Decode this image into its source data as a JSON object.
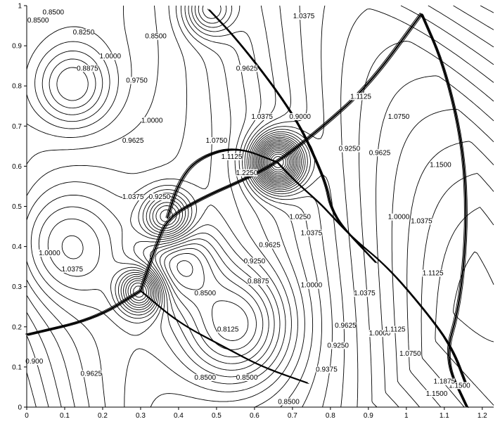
{
  "chart_data": {
    "type": "contour",
    "title": "",
    "xlabel": "",
    "ylabel": "",
    "xlim": [
      0,
      1.23
    ],
    "ylim": [
      0,
      1.0
    ],
    "x_ticks": [
      "0",
      "0.1",
      "0.2",
      "0.3",
      "0.4",
      "0.5",
      "0.6",
      "0.7",
      "0.8",
      "0.9",
      "1",
      "1.1",
      "1.2"
    ],
    "y_ticks": [
      "0",
      "0.1",
      "0.2",
      "0.3",
      "0.4",
      "0.5",
      "0.6",
      "0.7",
      "0.8",
      "0.9",
      "1"
    ],
    "grid": false,
    "line_color": "#000000",
    "shock_fronts": [
      {
        "points": [
          [
            0.3,
            0.29
          ],
          [
            0.34,
            0.4
          ],
          [
            0.37,
            0.47
          ],
          [
            0.46,
            0.52
          ],
          [
            0.58,
            0.57
          ],
          [
            0.66,
            0.61
          ],
          [
            0.77,
            0.69
          ],
          [
            0.9,
            0.8
          ],
          [
            1.04,
            0.98
          ]
        ]
      },
      {
        "points": [
          [
            1.04,
            0.98
          ],
          [
            1.1,
            0.85
          ],
          [
            1.15,
            0.65
          ],
          [
            1.16,
            0.45
          ],
          [
            1.14,
            0.25
          ],
          [
            1.1,
            0.12
          ],
          [
            1.16,
            0.0
          ]
        ]
      },
      {
        "points": [
          [
            0.66,
            0.61
          ],
          [
            0.71,
            0.56
          ],
          [
            0.77,
            0.51
          ],
          [
            0.8,
            0.48
          ],
          [
            0.86,
            0.42
          ],
          [
            0.95,
            0.35
          ],
          [
            1.05,
            0.24
          ],
          [
            1.12,
            0.15
          ],
          [
            1.16,
            0.05
          ]
        ]
      },
      {
        "points": [
          [
            0.3,
            0.29
          ],
          [
            0.4,
            0.21
          ],
          [
            0.52,
            0.15
          ],
          [
            0.62,
            0.1
          ],
          [
            0.74,
            0.06
          ]
        ]
      },
      {
        "points": [
          [
            0.3,
            0.29
          ],
          [
            0.18,
            0.22
          ],
          [
            0.0,
            0.18
          ]
        ]
      },
      {
        "points": [
          [
            0.48,
            0.99
          ],
          [
            0.55,
            0.92
          ],
          [
            0.65,
            0.8
          ],
          [
            0.72,
            0.7
          ],
          [
            0.76,
            0.62
          ],
          [
            0.79,
            0.55
          ],
          [
            0.8,
            0.5
          ],
          [
            0.83,
            0.45
          ],
          [
            0.92,
            0.36
          ]
        ]
      },
      {
        "points": [
          [
            0.37,
            0.47
          ],
          [
            0.4,
            0.56
          ],
          [
            0.45,
            0.62
          ],
          [
            0.55,
            0.65
          ],
          [
            0.66,
            0.61
          ]
        ]
      }
    ],
    "contour_labels": [
      {
        "text": "0.8500",
        "x": 0.07,
        "y": 0.98
      },
      {
        "text": "0.8500",
        "x": 0.03,
        "y": 0.96
      },
      {
        "text": "0.8250",
        "x": 0.15,
        "y": 0.93
      },
      {
        "text": "1.0000",
        "x": 0.22,
        "y": 0.87
      },
      {
        "text": "0.8875",
        "x": 0.16,
        "y": 0.84
      },
      {
        "text": "0.9750",
        "x": 0.29,
        "y": 0.81
      },
      {
        "text": "0.8500",
        "x": 0.34,
        "y": 0.92
      },
      {
        "text": "1.0375",
        "x": 0.73,
        "y": 0.97
      },
      {
        "text": "0.9625",
        "x": 0.58,
        "y": 0.84
      },
      {
        "text": "0.9000",
        "x": 0.72,
        "y": 0.72
      },
      {
        "text": "1.0375",
        "x": 0.62,
        "y": 0.72
      },
      {
        "text": "1.0750",
        "x": 0.5,
        "y": 0.66
      },
      {
        "text": "1.1125",
        "x": 0.54,
        "y": 0.62
      },
      {
        "text": "1.2250",
        "x": 0.58,
        "y": 0.58
      },
      {
        "text": "0.9625",
        "x": 0.28,
        "y": 0.66
      },
      {
        "text": "1.0000",
        "x": 0.33,
        "y": 0.71
      },
      {
        "text": "1.0375",
        "x": 0.28,
        "y": 0.52
      },
      {
        "text": "0.9250",
        "x": 0.35,
        "y": 0.52
      },
      {
        "text": "1.1125",
        "x": 0.88,
        "y": 0.77
      },
      {
        "text": "1.0750",
        "x": 0.98,
        "y": 0.72
      },
      {
        "text": "0.9250",
        "x": 0.85,
        "y": 0.64
      },
      {
        "text": "0.9625",
        "x": 0.93,
        "y": 0.63
      },
      {
        "text": "1.1500",
        "x": 1.09,
        "y": 0.6
      },
      {
        "text": "1.0000",
        "x": 0.98,
        "y": 0.47
      },
      {
        "text": "1.0375",
        "x": 1.04,
        "y": 0.46
      },
      {
        "text": "1.0250",
        "x": 0.72,
        "y": 0.47
      },
      {
        "text": "1.0375",
        "x": 0.75,
        "y": 0.43
      },
      {
        "text": "0.9625",
        "x": 0.64,
        "y": 0.4
      },
      {
        "text": "0.9250",
        "x": 0.6,
        "y": 0.36
      },
      {
        "text": "0.8875",
        "x": 0.61,
        "y": 0.31
      },
      {
        "text": "1.0000",
        "x": 0.75,
        "y": 0.3
      },
      {
        "text": "0.8500",
        "x": 0.47,
        "y": 0.28
      },
      {
        "text": "1.0375",
        "x": 0.89,
        "y": 0.28
      },
      {
        "text": "1.1125",
        "x": 1.07,
        "y": 0.33
      },
      {
        "text": "0.8125",
        "x": 0.53,
        "y": 0.19
      },
      {
        "text": "0.9625",
        "x": 0.84,
        "y": 0.2
      },
      {
        "text": "0.9250",
        "x": 0.82,
        "y": 0.15
      },
      {
        "text": "1.0000",
        "x": 0.93,
        "y": 0.18
      },
      {
        "text": "1.1125",
        "x": 0.97,
        "y": 0.19
      },
      {
        "text": "1.0750",
        "x": 1.01,
        "y": 0.13
      },
      {
        "text": "0.9375",
        "x": 0.79,
        "y": 0.09
      },
      {
        "text": "0.8500",
        "x": 0.47,
        "y": 0.07
      },
      {
        "text": "0.8500",
        "x": 0.58,
        "y": 0.07
      },
      {
        "text": "0.8500",
        "x": 0.69,
        "y": 0.01
      },
      {
        "text": "1.0000",
        "x": 0.06,
        "y": 0.38
      },
      {
        "text": "1.0375",
        "x": 0.12,
        "y": 0.34
      },
      {
        "text": "0.9625",
        "x": 0.17,
        "y": 0.08
      },
      {
        "text": "0.900",
        "x": 0.02,
        "y": 0.11
      },
      {
        "text": "1.1500",
        "x": 1.14,
        "y": 0.05
      },
      {
        "text": "1.1875",
        "x": 1.1,
        "y": 0.06
      },
      {
        "text": "1.1500",
        "x": 1.08,
        "y": 0.03
      }
    ]
  }
}
